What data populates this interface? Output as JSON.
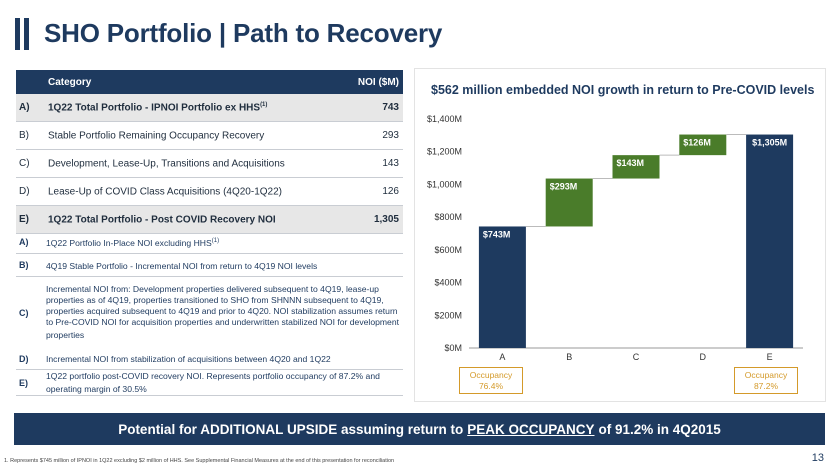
{
  "header": {
    "title": "SHO Portfolio | Path to Recovery"
  },
  "table": {
    "col_category": "Category",
    "col_noi": "NOI ($M)",
    "rows": [
      {
        "key": "A)",
        "label": "1Q22 Total Portfolio - IPNOI Portfolio ex HHS",
        "sup": "(1)",
        "value": "743"
      },
      {
        "key": "B)",
        "label": "Stable Portfolio Remaining Occupancy Recovery",
        "sup": "",
        "value": "293"
      },
      {
        "key": "C)",
        "label": "Development, Lease-Up, Transitions and Acquisitions",
        "sup": "",
        "value": "143"
      },
      {
        "key": "D)",
        "label": "Lease-Up of COVID Class Acquisitions (4Q20-1Q22)",
        "sup": "",
        "value": "126"
      },
      {
        "key": "E)",
        "label": "1Q22 Total Portfolio - Post COVID Recovery NOI",
        "sup": "",
        "value": "1,305"
      }
    ]
  },
  "notes": [
    {
      "key": "A)",
      "text": "1Q22 Portfolio In-Place NOI excluding  HHS",
      "sup": "(1)"
    },
    {
      "key": "B)",
      "text": "4Q19 Stable Portfolio - Incremental NOI from return to 4Q19 NOI levels",
      "sup": ""
    },
    {
      "key": "C)",
      "text": "Incremental NOI from: Development properties delivered subsequent to 4Q19, lease-up properties as of 4Q19, properties transitioned to SHO from SHNNN subsequent to 4Q19, properties acquired subsequent to 4Q19 and prior to 4Q20. NOI stabilization assumes return to Pre-COVID NOI for acquisition properties and underwritten stabilized NOI for development properties",
      "sup": ""
    },
    {
      "key": "D)",
      "text": "Incremental NOI from stabilization of acquisitions between 4Q20 and 1Q22",
      "sup": ""
    },
    {
      "key": "E)",
      "text": "1Q22 portfolio post-COVID recovery NOI. Represents portfolio occupancy of 87.2% and operating margin of 30.5%",
      "sup": ""
    }
  ],
  "chart_data": {
    "type": "bar",
    "subtype": "waterfall",
    "title": "$562 million embedded NOI growth in return to Pre-COVID levels",
    "categories": [
      "A",
      "B",
      "C",
      "D",
      "E"
    ],
    "values": [
      743,
      293,
      143,
      126,
      1305
    ],
    "bases": [
      0,
      743,
      1036,
      1179,
      0
    ],
    "labels": [
      "$743M",
      "$293M",
      "$143M",
      "$126M",
      "$1,305M"
    ],
    "ylim": [
      0,
      1400
    ],
    "yticks": [
      0,
      200,
      400,
      600,
      800,
      1000,
      1200,
      1400
    ],
    "ytick_labels": [
      "$0M",
      "$200M",
      "$400M",
      "$600M",
      "$800M",
      "$1,000M",
      "$1,200M",
      "$1,400M"
    ],
    "colors": {
      "total": "#1e3a5f",
      "increment": "#4a7c2a"
    },
    "bar_kinds": [
      "total",
      "increment",
      "increment",
      "increment",
      "total"
    ]
  },
  "occupancy": {
    "left": {
      "label": "Occupancy",
      "value": "76.4%"
    },
    "right": {
      "label": "Occupancy",
      "value": "87.2%"
    }
  },
  "banner": {
    "pre": "Potential for ADDITIONAL UPSIDE assuming return to",
    "underlined": "PEAK OCCUPANCY",
    "post": "of 91.2% in 4Q2015"
  },
  "footnote": "1. Represents $745 million of IPNOI in 1Q22 excluding $2 million of HHS. See Supplemental Financial Measures at the end of this presentation for reconciliation",
  "page_number": "13"
}
